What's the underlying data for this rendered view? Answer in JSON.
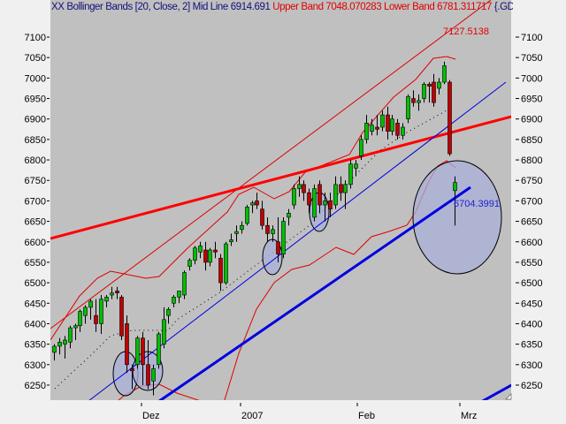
{
  "title": {
    "indicator": "XX Bollinger Bands [20, Close, 2] Mid Line 6914.691",
    "bands": "Upper Band 7048.070283 Lower Band 6781.311717",
    "symbol": "{.GD"
  },
  "chart_data": {
    "type": "candlestick",
    "y_ticks": [
      6250,
      6300,
      6350,
      6400,
      6450,
      6500,
      6550,
      6600,
      6650,
      6700,
      6750,
      6800,
      6850,
      6900,
      6950,
      7000,
      7050,
      7100
    ],
    "ylim": [
      6215,
      7155
    ],
    "x_ticks": [
      "Dez",
      "2007",
      "Feb",
      "Mrz"
    ],
    "grid": false,
    "annotations": [
      "7127.5138",
      "6704.3991"
    ],
    "indicator": {
      "name": "Bollinger Bands",
      "period": 20,
      "field": "Close",
      "stddev": 2,
      "mid": 6914.691,
      "upper": 7048.070283,
      "lower": 6781.311717
    },
    "candles_ohlc": [
      [
        6330,
        6350,
        6310,
        6345
      ],
      [
        6345,
        6365,
        6325,
        6355
      ],
      [
        6350,
        6370,
        6315,
        6360
      ],
      [
        6355,
        6395,
        6340,
        6390
      ],
      [
        6390,
        6400,
        6360,
        6395
      ],
      [
        6395,
        6435,
        6380,
        6430
      ],
      [
        6420,
        6445,
        6400,
        6440
      ],
      [
        6440,
        6460,
        6410,
        6455
      ],
      [
        6420,
        6460,
        6380,
        6400
      ],
      [
        6400,
        6470,
        6375,
        6460
      ],
      [
        6455,
        6470,
        6440,
        6465
      ],
      [
        6470,
        6490,
        6460,
        6475
      ],
      [
        6480,
        6490,
        6460,
        6475
      ],
      [
        6465,
        6470,
        6360,
        6370
      ],
      [
        6400,
        6420,
        6280,
        6300
      ],
      [
        6290,
        6300,
        6240,
        6285
      ],
      [
        6300,
        6370,
        6290,
        6365
      ],
      [
        6365,
        6380,
        6250,
        6300
      ],
      [
        6300,
        6360,
        6240,
        6250
      ],
      [
        6260,
        6300,
        6225,
        6290
      ],
      [
        6300,
        6380,
        6290,
        6375
      ],
      [
        6350,
        6440,
        6340,
        6410
      ],
      [
        6420,
        6440,
        6400,
        6435
      ],
      [
        6450,
        6470,
        6440,
        6465
      ],
      [
        6465,
        6480,
        6450,
        6480
      ],
      [
        6470,
        6530,
        6460,
        6525
      ],
      [
        6540,
        6560,
        6530,
        6555
      ],
      [
        6555,
        6590,
        6545,
        6585
      ],
      [
        6575,
        6600,
        6560,
        6590
      ],
      [
        6580,
        6600,
        6530,
        6550
      ],
      [
        6550,
        6585,
        6540,
        6580
      ],
      [
        6580,
        6600,
        6560,
        6575
      ],
      [
        6560,
        6570,
        6480,
        6500
      ],
      [
        6500,
        6600,
        6495,
        6595
      ],
      [
        6600,
        6620,
        6590,
        6605
      ],
      [
        6620,
        6640,
        6600,
        6625
      ],
      [
        6630,
        6650,
        6620,
        6640
      ],
      [
        6645,
        6690,
        6640,
        6685
      ],
      [
        6690,
        6700,
        6670,
        6695
      ],
      [
        6700,
        6720,
        6680,
        6690
      ],
      [
        6680,
        6700,
        6630,
        6640
      ],
      [
        6640,
        6660,
        6600,
        6620
      ],
      [
        6620,
        6640,
        6600,
        6630
      ],
      [
        6600,
        6660,
        6550,
        6570
      ],
      [
        6570,
        6660,
        6560,
        6650
      ],
      [
        6660,
        6680,
        6640,
        6670
      ],
      [
        6690,
        6740,
        6680,
        6730
      ],
      [
        6730,
        6760,
        6710,
        6740
      ],
      [
        6740,
        6750,
        6700,
        6720
      ],
      [
        6720,
        6730,
        6670,
        6690
      ],
      [
        6660,
        6740,
        6650,
        6730
      ],
      [
        6740,
        6750,
        6670,
        6690
      ],
      [
        6690,
        6720,
        6650,
        6700
      ],
      [
        6700,
        6720,
        6660,
        6680
      ],
      [
        6690,
        6760,
        6680,
        6740
      ],
      [
        6740,
        6760,
        6700,
        6720
      ],
      [
        6720,
        6750,
        6680,
        6740
      ],
      [
        6740,
        6800,
        6730,
        6790
      ],
      [
        6780,
        6800,
        6760,
        6790
      ],
      [
        6810,
        6860,
        6800,
        6850
      ],
      [
        6850,
        6910,
        6840,
        6890
      ],
      [
        6870,
        6900,
        6860,
        6885
      ],
      [
        6880,
        6910,
        6860,
        6875
      ],
      [
        6880,
        6920,
        6870,
        6910
      ],
      [
        6910,
        6930,
        6850,
        6870
      ],
      [
        6870,
        6910,
        6860,
        6900
      ],
      [
        6890,
        6900,
        6850,
        6860
      ],
      [
        6860,
        6890,
        6850,
        6880
      ],
      [
        6900,
        6960,
        6890,
        6955
      ],
      [
        6950,
        6970,
        6930,
        6940
      ],
      [
        6940,
        6960,
        6920,
        6945
      ],
      [
        6950,
        6990,
        6940,
        6985
      ],
      [
        6985,
        6990,
        6940,
        6980
      ],
      [
        6990,
        7010,
        6930,
        6940
      ],
      [
        6975,
        7000,
        6960,
        6990
      ],
      [
        6990,
        7040,
        6985,
        7030
      ],
      [
        6990,
        6995,
        6810,
        6815
      ],
      [
        6725,
        6760,
        6640,
        6745
      ]
    ]
  },
  "colors": {
    "up": "#00c000",
    "down": "#c00000",
    "plot_bg": "#c0c0c0",
    "trend_red": "#ff0000",
    "trend_blue": "#0000e0",
    "ellipse_fill": "#aab0d8"
  }
}
